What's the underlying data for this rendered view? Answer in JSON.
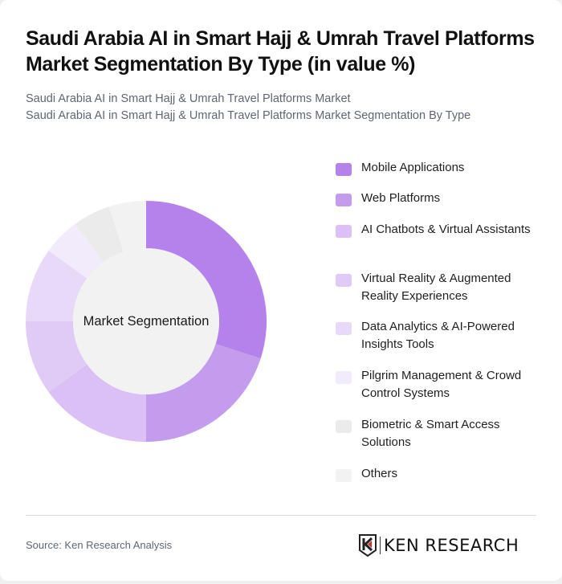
{
  "header": {
    "title": "Saudi Arabia AI in Smart Hajj & Umrah Travel Platforms Market Segmentation By Type (in value %)",
    "subtitle_line1": "Saudi Arabia AI in Smart Hajj & Umrah Travel Platforms Market",
    "subtitle_line2": "Saudi Arabia AI in Smart Hajj & Umrah Travel Platforms Market Segmentation By Type"
  },
  "chart": {
    "center_label": "Market Segmentation"
  },
  "legend": {
    "items": [
      {
        "label": "Mobile Applications",
        "color": "#b482ea"
      },
      {
        "label": "Web Platforms",
        "color": "#c49cee"
      },
      {
        "label": "AI Chatbots & Virtual Assistants",
        "color": "#dbc0f6"
      },
      {
        "label": "Virtual Reality & Augmented Reality Experiences",
        "color": "#e0cbf7"
      },
      {
        "label": "Data Analytics & AI-Powered Insights Tools",
        "color": "#e8d9f9"
      },
      {
        "label": "Pilgrim Management & Crowd Control Systems",
        "color": "#f2ebfc"
      },
      {
        "label": "Biometric & Smart Access Solutions",
        "color": "#ebebeb"
      },
      {
        "label": "Others",
        "color": "#f2f2f2"
      }
    ]
  },
  "footer": {
    "source": "Source: Ken Research Analysis",
    "logo_text": "KEN RESEARCH"
  },
  "chart_data": {
    "type": "pie",
    "variant": "donut",
    "title": "Saudi Arabia AI in Smart Hajj & Umrah Travel Platforms Market Segmentation By Type (in value %)",
    "center_label": "Market Segmentation",
    "categories": [
      "Mobile Applications",
      "Web Platforms",
      "AI Chatbots & Virtual Assistants",
      "Virtual Reality & Augmented Reality Experiences",
      "Data Analytics & AI-Powered Insights Tools",
      "Pilgrim Management & Crowd Control Systems",
      "Biometric & Smart Access Solutions",
      "Others"
    ],
    "values": [
      30,
      20,
      15,
      10,
      10,
      5,
      5,
      5
    ],
    "colors": [
      "#b482ea",
      "#c49cee",
      "#dbc0f6",
      "#e0cbf7",
      "#e8d9f9",
      "#f2ebfc",
      "#ebebeb",
      "#f2f2f2"
    ],
    "unit": "%",
    "legend_position": "right",
    "start_angle": "top, clockwise"
  }
}
